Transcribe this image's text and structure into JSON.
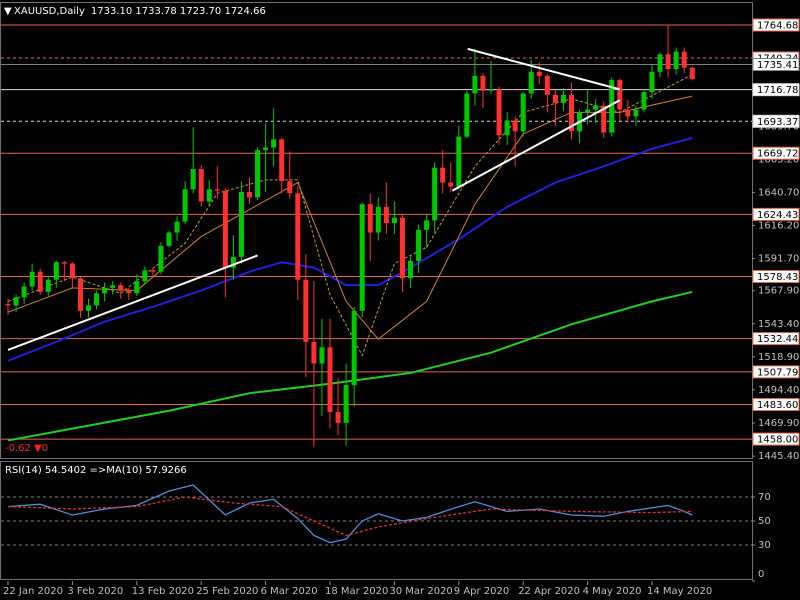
{
  "chart_data": [
    {
      "type": "candlestick",
      "title": "XAUUSD,Daily",
      "subtitle": "1733.10 1733.78 1723.70 1724.66",
      "annotation": "-0.62 ▼0",
      "up_color": "#00c800",
      "down_color": "#ff3030",
      "categories": [
        "22 Jan 2020",
        null,
        null,
        null,
        null,
        null,
        null,
        null,
        "3 Feb 2020",
        null,
        null,
        null,
        null,
        null,
        null,
        null,
        "13 Feb 2020",
        null,
        null,
        null,
        null,
        null,
        null,
        null,
        "25 Feb 2020",
        null,
        null,
        null,
        null,
        null,
        null,
        null,
        "6 Mar 2020",
        null,
        null,
        null,
        null,
        null,
        null,
        null,
        "18 Mar 2020",
        null,
        null,
        null,
        null,
        null,
        null,
        null,
        "30 Mar 2020",
        null,
        null,
        null,
        null,
        null,
        null,
        null,
        "9 Apr 2020",
        null,
        null,
        null,
        null,
        null,
        null,
        null,
        "22 Apr 2020",
        null,
        null,
        null,
        null,
        null,
        null,
        null,
        "4 May 2020",
        null,
        null,
        null,
        null,
        null,
        null,
        null,
        "14 May 2020",
        null,
        null,
        null,
        null,
        null
      ],
      "open": [
        1558,
        1557,
        1563,
        1571,
        1582,
        1567,
        1576,
        1589,
        1588,
        1577,
        1553,
        1557,
        1566,
        1570,
        1572,
        1568,
        1566,
        1575,
        1583,
        1582,
        1601,
        1611,
        1619,
        1643,
        1658,
        1634,
        1643,
        1642,
        1585,
        1593,
        1641,
        1637,
        1672,
        1674,
        1680,
        1649,
        1640,
        1576,
        1530,
        1514,
        1526,
        1478,
        1470,
        1498,
        1553,
        1632,
        1611,
        1630,
        1618,
        1622,
        1577,
        1590,
        1613,
        1620,
        1659,
        1648,
        1645,
        1682,
        1714,
        1727,
        1716,
        1717,
        1683,
        1694,
        1686,
        1714,
        1730,
        1727,
        1713,
        1707,
        1713,
        1686,
        1700,
        1702,
        1705,
        1685,
        1724,
        1702,
        1697,
        1702,
        1715,
        1730,
        1743,
        1732,
        1745,
        1733.1
      ],
      "high": [
        1562,
        1565,
        1574,
        1588,
        1584,
        1578,
        1590,
        1590,
        1589,
        1578,
        1562,
        1568,
        1574,
        1575,
        1574,
        1570,
        1580,
        1586,
        1585,
        1604,
        1612,
        1623,
        1649,
        1689,
        1661,
        1650,
        1660,
        1644,
        1609,
        1649,
        1652,
        1674,
        1692,
        1703,
        1681,
        1671,
        1645,
        1595,
        1575,
        1547,
        1547,
        1503,
        1514,
        1556,
        1633,
        1640,
        1637,
        1648,
        1634,
        1625,
        1594,
        1617,
        1625,
        1663,
        1672,
        1663,
        1690,
        1716,
        1747,
        1729,
        1738,
        1719,
        1700,
        1697,
        1715,
        1739,
        1737,
        1728,
        1717,
        1718,
        1722,
        1702,
        1716,
        1710,
        1708,
        1726,
        1725,
        1709,
        1705,
        1717,
        1735,
        1744,
        1765,
        1748,
        1748,
        1733.78
      ],
      "low": [
        1550,
        1552,
        1558,
        1568,
        1565,
        1564,
        1570,
        1575,
        1570,
        1548,
        1548,
        1554,
        1560,
        1565,
        1562,
        1561,
        1564,
        1573,
        1578,
        1580,
        1600,
        1605,
        1617,
        1640,
        1630,
        1631,
        1636,
        1563,
        1576,
        1588,
        1632,
        1635,
        1641,
        1660,
        1640,
        1636,
        1561,
        1504,
        1452,
        1475,
        1466,
        1461,
        1453,
        1482,
        1548,
        1590,
        1605,
        1610,
        1610,
        1567,
        1570,
        1581,
        1600,
        1611,
        1640,
        1641,
        1643,
        1681,
        1705,
        1703,
        1714,
        1676,
        1676,
        1660,
        1682,
        1710,
        1721,
        1700,
        1690,
        1701,
        1680,
        1677,
        1691,
        1692,
        1681,
        1682,
        1694,
        1692,
        1690,
        1700,
        1710,
        1726,
        1726,
        1728,
        1729,
        1723.7
      ],
      "close": [
        1557,
        1563,
        1571,
        1582,
        1567,
        1576,
        1589,
        1588,
        1577,
        1553,
        1557,
        1566,
        1570,
        1572,
        1568,
        1566,
        1575,
        1583,
        1582,
        1601,
        1611,
        1619,
        1643,
        1658,
        1634,
        1643,
        1642,
        1585,
        1593,
        1641,
        1637,
        1672,
        1674,
        1680,
        1649,
        1640,
        1576,
        1530,
        1514,
        1526,
        1478,
        1470,
        1498,
        1553,
        1632,
        1611,
        1630,
        1618,
        1622,
        1577,
        1590,
        1613,
        1620,
        1659,
        1648,
        1645,
        1682,
        1714,
        1727,
        1716,
        1717,
        1683,
        1694,
        1686,
        1714,
        1730,
        1727,
        1713,
        1707,
        1713,
        1686,
        1700,
        1702,
        1705,
        1685,
        1724,
        1702,
        1697,
        1702,
        1715,
        1730,
        1743,
        1732,
        1745,
        1733,
        1724.66
      ],
      "ylim": [
        1444,
        1779.5
      ],
      "yticks": [
        {
          "value": 1445.4,
          "label": "1445.40"
        },
        {
          "value": 1469.9,
          "label": "1469.90"
        },
        {
          "value": 1494.4,
          "label": "1494.40"
        },
        {
          "value": 1518.9,
          "label": "1518.90"
        },
        {
          "value": 1543.4,
          "label": "1543.40"
        },
        {
          "value": 1567.9,
          "label": "1567.90"
        },
        {
          "value": 1591.7,
          "label": "1591.70"
        },
        {
          "value": 1616.2,
          "label": "1616.20"
        },
        {
          "value": 1640.7,
          "label": "1640.70"
        },
        {
          "value": 1665.2,
          "label": "1665.20"
        },
        {
          "value": 1689.7,
          "label": "1689.70"
        }
      ],
      "levels": [
        {
          "value": 1764.68,
          "label": "1764.68",
          "color": "#e0694f",
          "dashed": false
        },
        {
          "value": 1740.24,
          "label": "1740.24",
          "color": "#e0694f",
          "dashed": true
        },
        {
          "value": 1735.41,
          "label": "1735.41",
          "color": "#808080",
          "dashed": false
        },
        {
          "value": 1716.78,
          "label": "1716.78",
          "color": "#d8d8d8",
          "dashed": false
        },
        {
          "value": 1693.37,
          "label": "1693.37",
          "color": "#d8d8d8",
          "dashed": true
        },
        {
          "value": 1669.72,
          "label": "1669.72",
          "color": "#e0694f",
          "dashed": false
        },
        {
          "value": 1624.43,
          "label": "1624.43",
          "color": "#e0694f",
          "dashed": false
        },
        {
          "value": 1578.43,
          "label": "1578.43",
          "color": "#e0694f",
          "dashed": false
        },
        {
          "value": 1532.44,
          "label": "1532.44",
          "color": "#e0694f",
          "dashed": false
        },
        {
          "value": 1507.79,
          "label": "1507.79",
          "color": "#e0694f",
          "dashed": false
        },
        {
          "value": 1483.6,
          "label": "1483.60",
          "color": "#e0694f",
          "dashed": false
        },
        {
          "value": 1458,
          "label": "1458.00",
          "color": "#e0694f",
          "dashed": false
        }
      ],
      "overlays": [
        {
          "color": "#2020e0",
          "width": 2,
          "dashed": false,
          "x": [
            0,
            6,
            12,
            18,
            24,
            30,
            34,
            38,
            42,
            46,
            50,
            56,
            62,
            68,
            74,
            80,
            85
          ],
          "values": [
            1516,
            1530,
            1545,
            1556,
            1568,
            1582,
            1589,
            1585,
            1572,
            1572,
            1585,
            1606,
            1630,
            1648,
            1660,
            1673,
            1681
          ]
        },
        {
          "color": "#20d020",
          "width": 2,
          "dashed": false,
          "x": [
            0,
            10,
            20,
            30,
            40,
            50,
            60,
            70,
            80,
            85
          ],
          "values": [
            1457,
            1468,
            1479,
            1492,
            1499,
            1507,
            1522,
            1543,
            1560,
            1567
          ]
        },
        {
          "color": "#d08020",
          "width": 1,
          "dashed": false,
          "x": [
            0,
            8,
            16,
            24,
            30,
            36,
            42,
            46,
            52,
            58,
            64,
            70,
            76,
            85
          ],
          "values": [
            1552,
            1570,
            1568,
            1608,
            1628,
            1648,
            1560,
            1532,
            1560,
            1632,
            1684,
            1700,
            1700,
            1712
          ]
        },
        {
          "color": "#c8a000",
          "width": 1,
          "dashed": true,
          "x": [
            0,
            8,
            14,
            22,
            26,
            32,
            36,
            40,
            44,
            48,
            52,
            58,
            64,
            70,
            76,
            85
          ],
          "values": [
            1560,
            1578,
            1566,
            1603,
            1640,
            1650,
            1650,
            1565,
            1520,
            1588,
            1600,
            1660,
            1700,
            1710,
            1700,
            1728
          ]
        }
      ],
      "trendlines": [
        {
          "x": [
            0,
            31
          ],
          "values": [
            1524,
            1594
          ]
        },
        {
          "x": [
            57.1,
            76
          ],
          "values": [
            1747,
            1717
          ]
        },
        {
          "x": [
            55.2,
            76
          ],
          "values": [
            1642,
            1709
          ]
        }
      ]
    },
    {
      "type": "line",
      "title": "RSI(14) 54.5402  =>MA(10) 57.9266",
      "ylim": [
        0,
        100
      ],
      "yticks": [
        0,
        30,
        50,
        70
      ],
      "levels": [
        30,
        50,
        70
      ],
      "series": [
        {
          "color": "#4a90d9",
          "dashed": false,
          "x": [
            0,
            4,
            8,
            12,
            16,
            20,
            23,
            27,
            30,
            33,
            36,
            38,
            40,
            42,
            44,
            46,
            49,
            52,
            56,
            58,
            62,
            66,
            70,
            74,
            77,
            80,
            82,
            84,
            85
          ],
          "values": [
            62,
            64,
            55,
            60,
            63,
            75,
            80,
            55,
            65,
            68,
            52,
            38,
            32,
            35,
            50,
            56,
            50,
            53,
            62,
            66,
            58,
            60,
            55,
            54,
            58,
            61,
            63,
            58,
            55
          ]
        },
        {
          "color": "#e03030",
          "dashed": true,
          "x": [
            0,
            8,
            16,
            22,
            28,
            34,
            38,
            42,
            46,
            52,
            60,
            70,
            80,
            85
          ],
          "values": [
            62,
            60,
            62,
            70,
            65,
            62,
            50,
            38,
            45,
            52,
            60,
            58,
            57,
            58
          ]
        }
      ]
    }
  ]
}
